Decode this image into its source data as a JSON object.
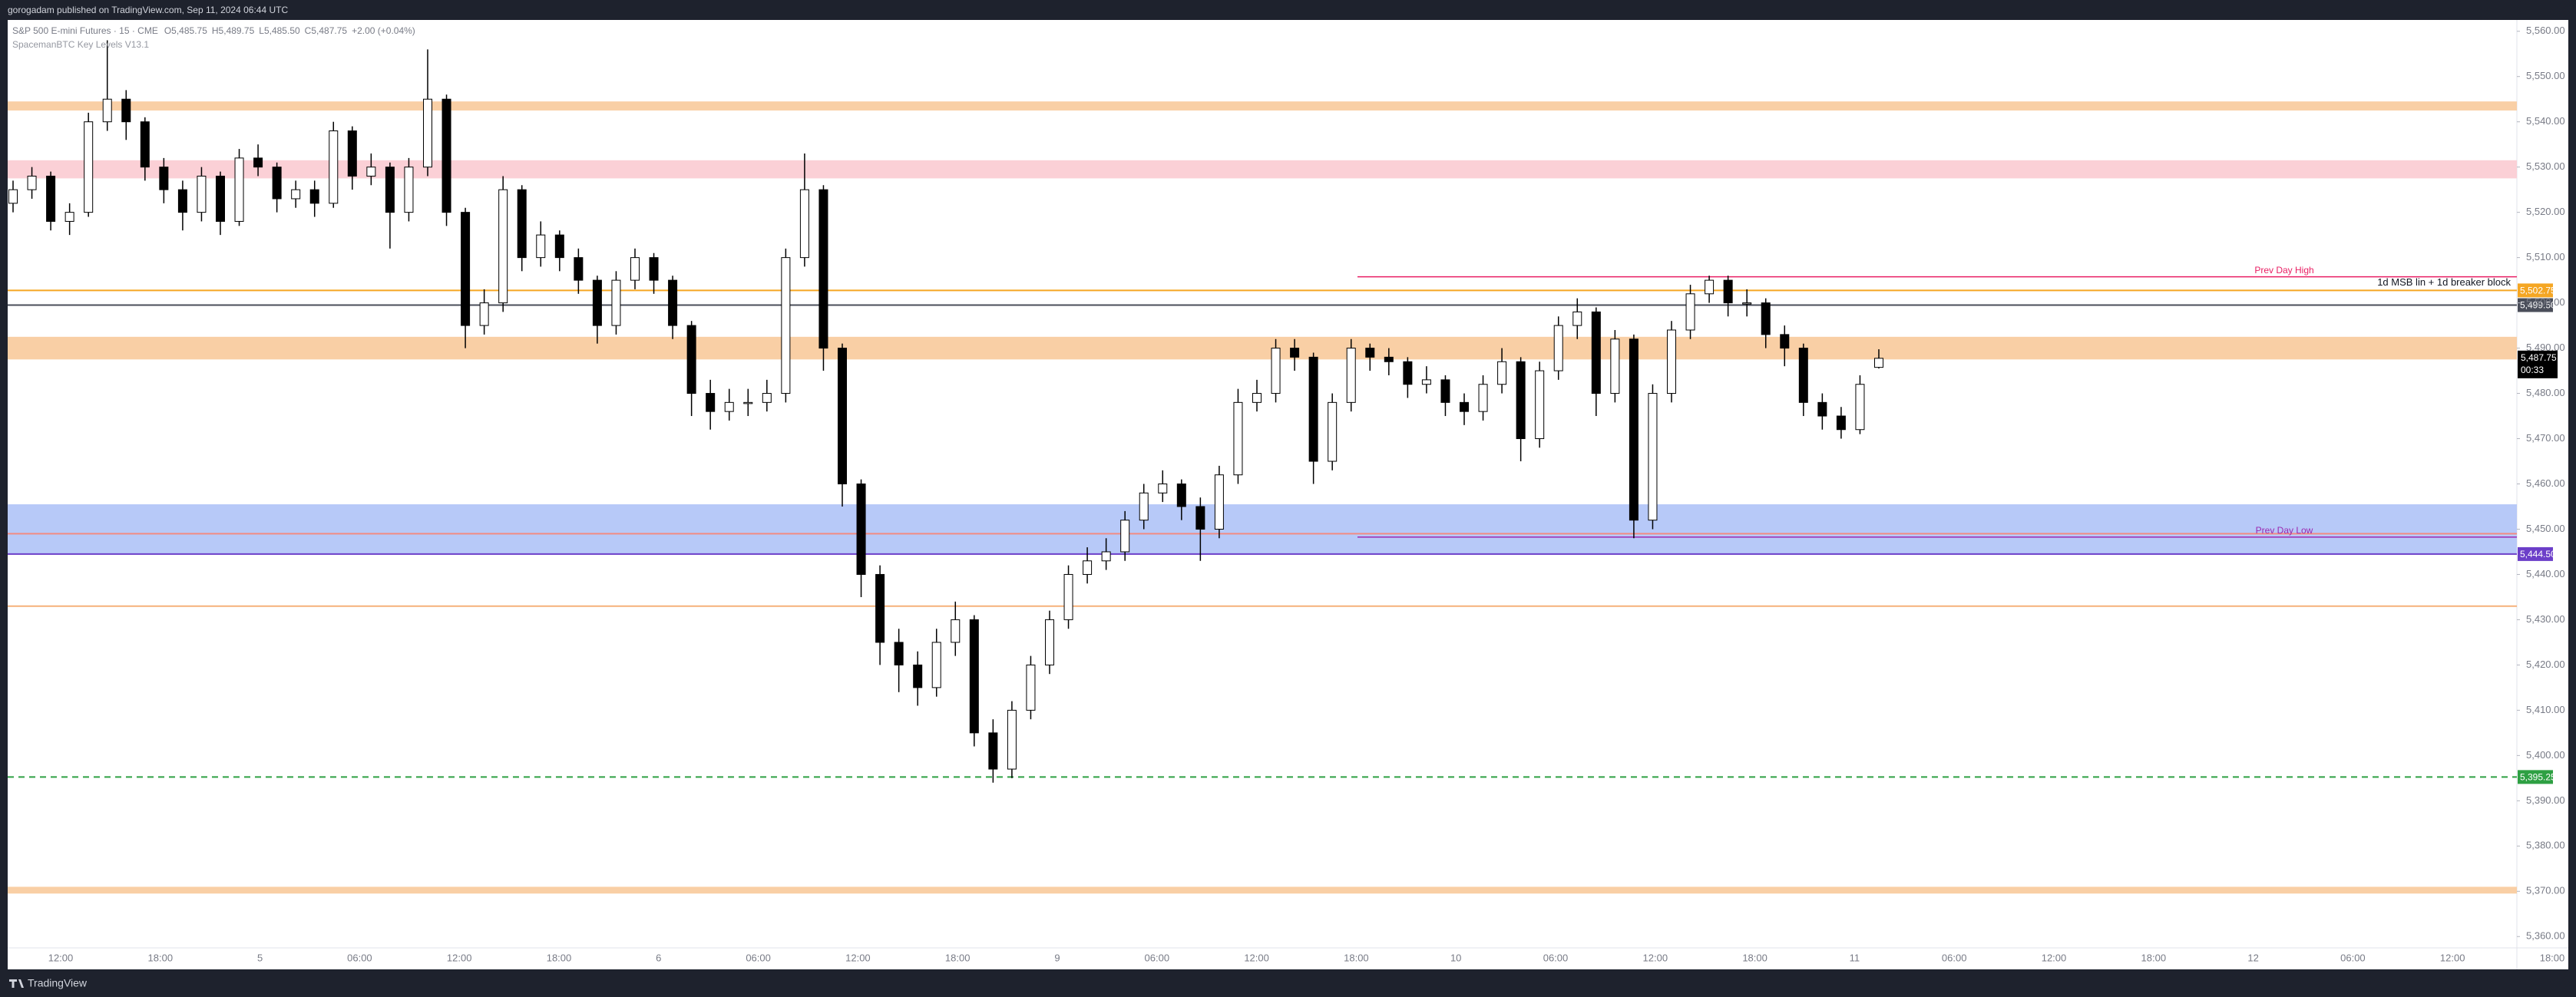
{
  "chart_data": {
    "type": "candlestick",
    "publisher": "gorogadam published on TradingView.com, Sep 11, 2024 06:44 UTC",
    "symbol": "S&P 500 E-mini Futures · 15 · CME",
    "legend": {
      "open": "O5,485.75",
      "high": "H5,489.75",
      "low": "L5,485.50",
      "close": "C5,487.75",
      "change": "+2.00 (+0.04%)"
    },
    "indicator": "SpacemanBTC Key Levels V13.1",
    "brand": "TradingView",
    "up_color": "#ffffff",
    "down_color": "#000000",
    "ylim": [
      5357.5,
      5562.5
    ],
    "yticks": [
      {
        "value": 5560,
        "label": "5,560.00"
      },
      {
        "value": 5550,
        "label": "5,550.00"
      },
      {
        "value": 5540,
        "label": "5,540.00"
      },
      {
        "value": 5530,
        "label": "5,530.00"
      },
      {
        "value": 5520,
        "label": "5,520.00"
      },
      {
        "value": 5510,
        "label": "5,510.00"
      },
      {
        "value": 5500,
        "label": "5,500.00"
      },
      {
        "value": 5490,
        "label": "5,490.00"
      },
      {
        "value": 5480,
        "label": "5,480.00"
      },
      {
        "value": 5470,
        "label": "5,470.00"
      },
      {
        "value": 5460,
        "label": "5,460.00"
      },
      {
        "value": 5450,
        "label": "5,450.00"
      },
      {
        "value": 5440,
        "label": "5,440.00"
      },
      {
        "value": 5430,
        "label": "5,430.00"
      },
      {
        "value": 5420,
        "label": "5,420.00"
      },
      {
        "value": 5410,
        "label": "5,410.00"
      },
      {
        "value": 5400,
        "label": "5,400.00"
      },
      {
        "value": 5390,
        "label": "5,390.00"
      },
      {
        "value": 5380,
        "label": "5,380.00"
      },
      {
        "value": 5370,
        "label": "5,370.00"
      },
      {
        "value": 5360,
        "label": "5,360.00"
      }
    ],
    "grid": false,
    "time_labels": [
      "12:00",
      "18:00",
      "5",
      "06:00",
      "12:00",
      "18:00",
      "6",
      "06:00",
      "12:00",
      "18:00",
      "9",
      "06:00",
      "12:00",
      "18:00",
      "10",
      "06:00",
      "12:00",
      "18:00",
      "11",
      "06:00",
      "12:00",
      "18:00",
      "12",
      "06:00",
      "12:00",
      "18:00"
    ],
    "open": [
      5522,
      5525,
      5528,
      5518,
      5520,
      5540,
      5545,
      5540,
      5530,
      5525,
      5520,
      5528,
      5518,
      5532,
      5530,
      5523,
      5525,
      5522,
      5538,
      5528,
      5530,
      5520,
      5530,
      5545,
      5520,
      5495,
      5500,
      5525,
      5510,
      5515,
      5510,
      5505,
      5495,
      5505,
      5510,
      5505,
      5495,
      5480,
      5476,
      5478,
      5478,
      5480,
      5510,
      5525,
      5490,
      5460,
      5440,
      5425,
      5420,
      5415,
      5425,
      5430,
      5405,
      5397,
      5410,
      5420,
      5430,
      5440,
      5443,
      5445,
      5452,
      5458,
      5460,
      5455,
      5450,
      5462,
      5478,
      5480,
      5490,
      5488,
      5465,
      5478,
      5490,
      5488,
      5487,
      5482,
      5483,
      5478,
      5476,
      5482,
      5487,
      5470,
      5485,
      5495,
      5498,
      5480,
      5492,
      5452,
      5480,
      5494,
      5502,
      5505,
      5500,
      5500,
      5493,
      5490,
      5478,
      5475,
      5472,
      5485.75
    ],
    "high": [
      5527,
      5530,
      5529,
      5522,
      5542,
      5558,
      5547,
      5541,
      5532,
      5527,
      5530,
      5529,
      5534,
      5535,
      5531,
      5527,
      5527,
      5540,
      5539,
      5533,
      5531,
      5532,
      5556,
      5546,
      5521,
      5503,
      5528,
      5526,
      5518,
      5516,
      5512,
      5506,
      5507,
      5512,
      5511,
      5506,
      5496,
      5483,
      5481,
      5481,
      5483,
      5512,
      5533,
      5526,
      5491,
      5461,
      5442,
      5428,
      5423,
      5428,
      5434,
      5431,
      5408,
      5412,
      5422,
      5432,
      5442,
      5446,
      5448,
      5454,
      5460,
      5463,
      5461,
      5457,
      5464,
      5481,
      5483,
      5492,
      5492,
      5489,
      5480,
      5492,
      5491,
      5490,
      5488,
      5486,
      5484,
      5480,
      5484,
      5490,
      5488,
      5487,
      5497,
      5501,
      5499,
      5494,
      5493,
      5482,
      5496,
      5504,
      5506,
      5506,
      5503,
      5501,
      5495,
      5491,
      5480,
      5477,
      5484,
      5489.75
    ],
    "low": [
      5520,
      5523,
      5516,
      5515,
      5519,
      5538,
      5536,
      5527,
      5522,
      5516,
      5518,
      5515,
      5517,
      5528,
      5520,
      5521,
      5519,
      5521,
      5525,
      5526,
      5512,
      5518,
      5528,
      5517,
      5490,
      5493,
      5498,
      5507,
      5508,
      5507,
      5502,
      5491,
      5493,
      5503,
      5502,
      5492,
      5475,
      5472,
      5474,
      5475,
      5476,
      5478,
      5508,
      5485,
      5455,
      5435,
      5420,
      5414,
      5411,
      5413,
      5422,
      5402,
      5394,
      5395,
      5408,
      5418,
      5428,
      5438,
      5441,
      5443,
      5450,
      5456,
      5452,
      5443,
      5448,
      5460,
      5476,
      5478,
      5485,
      5460,
      5463,
      5476,
      5485,
      5484,
      5479,
      5480,
      5475,
      5473,
      5474,
      5480,
      5465,
      5468,
      5483,
      5492,
      5475,
      5478,
      5448,
      5450,
      5478,
      5492,
      5500,
      5497,
      5497,
      5490,
      5486,
      5475,
      5472,
      5470,
      5471,
      5485.5
    ],
    "close": [
      5525,
      5528,
      5518,
      5520,
      5540,
      5545,
      5540,
      5530,
      5525,
      5520,
      5528,
      5518,
      5532,
      5530,
      5523,
      5525,
      5522,
      5538,
      5528,
      5530,
      5520,
      5530,
      5545,
      5520,
      5495,
      5500,
      5525,
      5510,
      5515,
      5510,
      5505,
      5495,
      5505,
      5510,
      5505,
      5495,
      5480,
      5476,
      5478,
      5478,
      5480,
      5510,
      5525,
      5490,
      5460,
      5440,
      5425,
      5420,
      5415,
      5425,
      5430,
      5405,
      5397,
      5410,
      5420,
      5430,
      5440,
      5443,
      5445,
      5452,
      5458,
      5460,
      5455,
      5450,
      5462,
      5478,
      5480,
      5490,
      5488,
      5465,
      5478,
      5490,
      5488,
      5487,
      5482,
      5483,
      5478,
      5476,
      5482,
      5487,
      5470,
      5485,
      5495,
      5498,
      5480,
      5492,
      5452,
      5480,
      5494,
      5502,
      5505,
      5500,
      5500,
      5493,
      5490,
      5478,
      5475,
      5472,
      5482,
      5487.75
    ],
    "zones": [
      {
        "low": 5542.5,
        "high": 5544.5,
        "color": "#f9cfa5"
      },
      {
        "low": 5527.5,
        "high": 5531.5,
        "color": "#fbd0d6"
      },
      {
        "low": 5487.5,
        "high": 5492.5,
        "color": "#f9cfa5"
      },
      {
        "low": 5444.5,
        "high": 5455.5,
        "color": "#b7c9f8"
      },
      {
        "low": 5369.5,
        "high": 5371.0,
        "color": "#f9cfa5"
      }
    ],
    "lines": [
      {
        "value": 5433,
        "color": "#f6b17a"
      },
      {
        "value": 5449,
        "color": "#f28b82"
      }
    ],
    "levels": [
      {
        "value": 5502.75,
        "label": "5,502.75",
        "color": "#f5a623",
        "dashed": false
      },
      {
        "value": 5499.5,
        "label": "5,499.50",
        "color": "#4a4e5a",
        "dashed": false
      },
      {
        "value": 5444.5,
        "label": "5,444.50",
        "color": "#6c3fc9",
        "dashed": false
      },
      {
        "value": 5395.25,
        "label": "5,395.25",
        "color": "#2ea043",
        "dashed": true
      }
    ],
    "annotations": [
      {
        "text": "Prev Day High",
        "value": 5505.75,
        "color": "#e91e63"
      },
      {
        "text": "Prev Day Low",
        "value": 5448.25,
        "color": "#9c27b0"
      }
    ],
    "zone_note": "1d MSB lin + 1d breaker block",
    "last_price": {
      "value": 5487.75,
      "label": "5,487.75",
      "countdown": "00:33"
    }
  }
}
